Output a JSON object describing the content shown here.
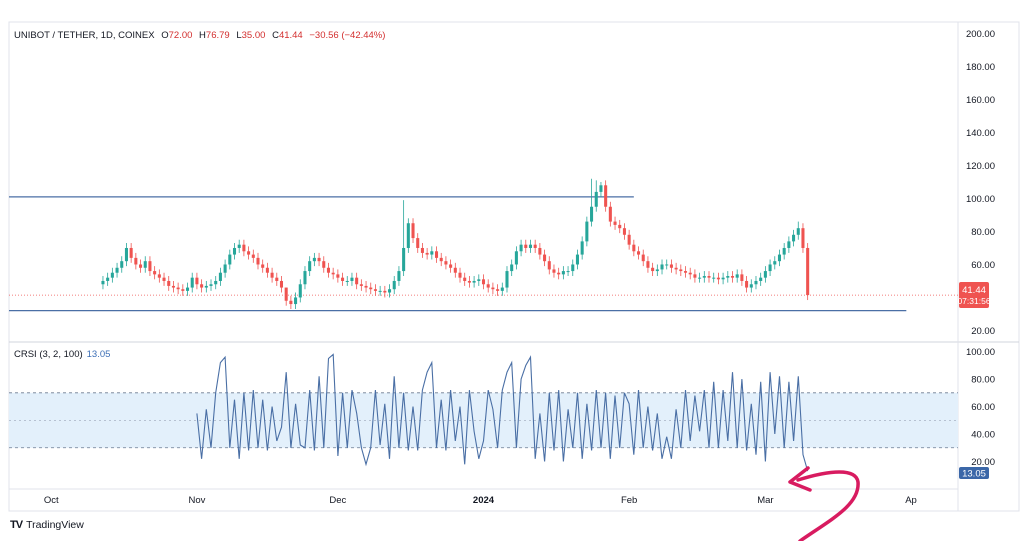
{
  "header": {
    "symbol": "UNIBOT / TETHER, 1D, COINEX",
    "o_label": "O",
    "o_value": "72.00",
    "h_label": "H",
    "h_value": "76.79",
    "l_label": "L",
    "l_value": "35.00",
    "c_label": "C",
    "c_value": "41.44",
    "change": "−30.56 (−42.44%)"
  },
  "indicator": {
    "name": "CRSI (3, 2, 100)",
    "value": "13.05"
  },
  "brand": {
    "logo": "TV",
    "name": "TradingView"
  },
  "price_badge": {
    "price": "41.44",
    "countdown": "07:31:56"
  },
  "crsi_badge": "13.05",
  "colors": {
    "up": "#26a69a",
    "down": "#ef5350",
    "line": "#4a6fa5",
    "band": "#e3f0fb",
    "accent": "#d81b60"
  },
  "chart_data": [
    {
      "type": "candlestick",
      "title": "",
      "y_axis_ticks": [
        "200.00",
        "180.00",
        "160.00",
        "140.00",
        "120.00",
        "100.00",
        "80.00",
        "60.00",
        "20.00"
      ],
      "ylim": [
        13,
        207
      ],
      "x_axis_ticks": [
        "Oct",
        "Nov",
        "Dec",
        "2024",
        "Feb",
        "Mar",
        "Ap"
      ],
      "x_range": [
        "2023-09-22",
        "2024-04-11"
      ],
      "hlines": [
        {
          "name": "resistance",
          "y": 101,
          "x_from": "2023-09-22",
          "x_to": "2024-02-02"
        },
        {
          "name": "support",
          "y": 32,
          "x_from": "2023-09-22",
          "x_to": "2024-03-31"
        }
      ],
      "last_price": 41.44,
      "closes": [
        50,
        52,
        55,
        58,
        62,
        70,
        64,
        60,
        58,
        62,
        56,
        54,
        52,
        50,
        47,
        46,
        45,
        44,
        46,
        52,
        48,
        46,
        47,
        48,
        50,
        55,
        60,
        66,
        70,
        72,
        68,
        66,
        64,
        60,
        58,
        55,
        52,
        50,
        46,
        38,
        36,
        40,
        48,
        56,
        62,
        64,
        62,
        58,
        55,
        54,
        52,
        50,
        50,
        52,
        48,
        47,
        46,
        45,
        44,
        44,
        43,
        45,
        50,
        56,
        70,
        85,
        76,
        70,
        67,
        66,
        68,
        64,
        62,
        60,
        58,
        55,
        52,
        50,
        49,
        50,
        51,
        48,
        46,
        45,
        44,
        46,
        56,
        60,
        68,
        72,
        70,
        72,
        70,
        66,
        62,
        57,
        55,
        54,
        56,
        56,
        60,
        66,
        74,
        86,
        95,
        104,
        108,
        95,
        86,
        84,
        82,
        78,
        72,
        68,
        66,
        62,
        58,
        56,
        57,
        60,
        60,
        58,
        57,
        56,
        55,
        54,
        52,
        52,
        53,
        52,
        52,
        51,
        52,
        53,
        52,
        54,
        50,
        46,
        48,
        50,
        52,
        56,
        60,
        62,
        66,
        70,
        74,
        78,
        82,
        70,
        41.44
      ],
      "crsi": [
        {
          "x": "2023-11-01",
          "y": 55
        },
        {
          "x": "2023-11-02",
          "y": 22
        },
        {
          "x": "2023-11-03",
          "y": 58
        },
        {
          "x": "2023-11-04",
          "y": 30
        },
        {
          "x": "2023-11-05",
          "y": 70
        },
        {
          "x": "2023-11-06",
          "y": 92
        },
        {
          "x": "2023-11-07",
          "y": 96
        },
        {
          "x": "2023-11-08",
          "y": 30
        },
        {
          "x": "2023-11-09",
          "y": 65
        },
        {
          "x": "2023-11-10",
          "y": 22
        },
        {
          "x": "2023-11-11",
          "y": 70
        },
        {
          "x": "2023-11-12",
          "y": 28
        },
        {
          "x": "2023-11-13",
          "y": 72
        },
        {
          "x": "2023-11-14",
          "y": 30
        },
        {
          "x": "2023-11-15",
          "y": 65
        },
        {
          "x": "2023-11-16",
          "y": 28
        },
        {
          "x": "2023-11-17",
          "y": 60
        },
        {
          "x": "2023-11-18",
          "y": 35
        },
        {
          "x": "2023-11-19",
          "y": 45
        },
        {
          "x": "2023-11-20",
          "y": 85
        },
        {
          "x": "2023-11-21",
          "y": 30
        },
        {
          "x": "2023-11-22",
          "y": 62
        },
        {
          "x": "2023-11-23",
          "y": 32
        },
        {
          "x": "2023-11-24",
          "y": 30
        },
        {
          "x": "2023-11-25",
          "y": 72
        },
        {
          "x": "2023-11-26",
          "y": 28
        },
        {
          "x": "2023-11-27",
          "y": 82
        },
        {
          "x": "2023-11-28",
          "y": 30
        },
        {
          "x": "2023-11-29",
          "y": 95
        },
        {
          "x": "2023-11-30",
          "y": 98
        },
        {
          "x": "2023-12-01",
          "y": 24
        },
        {
          "x": "2023-12-02",
          "y": 70
        },
        {
          "x": "2023-12-03",
          "y": 30
        },
        {
          "x": "2023-12-04",
          "y": 72
        },
        {
          "x": "2023-12-05",
          "y": 55
        },
        {
          "x": "2023-12-06",
          "y": 30
        },
        {
          "x": "2023-12-07",
          "y": 18
        },
        {
          "x": "2023-12-08",
          "y": 30
        },
        {
          "x": "2023-12-09",
          "y": 72
        },
        {
          "x": "2023-12-10",
          "y": 32
        },
        {
          "x": "2023-12-11",
          "y": 62
        },
        {
          "x": "2023-12-12",
          "y": 22
        },
        {
          "x": "2023-12-13",
          "y": 82
        },
        {
          "x": "2023-12-14",
          "y": 30
        },
        {
          "x": "2023-12-15",
          "y": 70
        },
        {
          "x": "2023-12-16",
          "y": 28
        },
        {
          "x": "2023-12-17",
          "y": 60
        },
        {
          "x": "2023-12-18",
          "y": 28
        },
        {
          "x": "2023-12-19",
          "y": 72
        },
        {
          "x": "2023-12-20",
          "y": 85
        },
        {
          "x": "2023-12-21",
          "y": 92
        },
        {
          "x": "2023-12-22",
          "y": 30
        },
        {
          "x": "2023-12-23",
          "y": 65
        },
        {
          "x": "2023-12-24",
          "y": 28
        },
        {
          "x": "2023-12-25",
          "y": 72
        },
        {
          "x": "2023-12-26",
          "y": 35
        },
        {
          "x": "2023-12-27",
          "y": 60
        },
        {
          "x": "2023-12-28",
          "y": 18
        },
        {
          "x": "2023-12-29",
          "y": 72
        },
        {
          "x": "2023-12-30",
          "y": 42
        },
        {
          "x": "2023-12-31",
          "y": 22
        },
        {
          "x": "2024-01-01",
          "y": 35
        },
        {
          "x": "2024-01-02",
          "y": 72
        },
        {
          "x": "2024-01-03",
          "y": 58
        },
        {
          "x": "2024-01-04",
          "y": 30
        },
        {
          "x": "2024-01-05",
          "y": 72
        },
        {
          "x": "2024-01-06",
          "y": 85
        },
        {
          "x": "2024-01-07",
          "y": 92
        },
        {
          "x": "2024-01-08",
          "y": 30
        },
        {
          "x": "2024-01-09",
          "y": 80
        },
        {
          "x": "2024-01-10",
          "y": 90
        },
        {
          "x": "2024-01-11",
          "y": 96
        },
        {
          "x": "2024-01-12",
          "y": 22
        },
        {
          "x": "2024-01-13",
          "y": 55
        },
        {
          "x": "2024-01-14",
          "y": 20
        },
        {
          "x": "2024-01-15",
          "y": 70
        },
        {
          "x": "2024-01-16",
          "y": 28
        },
        {
          "x": "2024-01-17",
          "y": 72
        },
        {
          "x": "2024-01-18",
          "y": 20
        },
        {
          "x": "2024-01-19",
          "y": 58
        },
        {
          "x": "2024-01-20",
          "y": 30
        },
        {
          "x": "2024-01-21",
          "y": 70
        },
        {
          "x": "2024-01-22",
          "y": 22
        },
        {
          "x": "2024-01-23",
          "y": 62
        },
        {
          "x": "2024-01-24",
          "y": 28
        },
        {
          "x": "2024-01-25",
          "y": 72
        },
        {
          "x": "2024-01-26",
          "y": 30
        },
        {
          "x": "2024-01-27",
          "y": 70
        },
        {
          "x": "2024-01-28",
          "y": 22
        },
        {
          "x": "2024-01-29",
          "y": 68
        },
        {
          "x": "2024-01-30",
          "y": 30
        },
        {
          "x": "2024-01-31",
          "y": 70
        },
        {
          "x": "2024-02-01",
          "y": 62
        },
        {
          "x": "2024-02-02",
          "y": 25
        },
        {
          "x": "2024-02-03",
          "y": 72
        },
        {
          "x": "2024-02-04",
          "y": 30
        },
        {
          "x": "2024-02-05",
          "y": 60
        },
        {
          "x": "2024-02-06",
          "y": 28
        },
        {
          "x": "2024-02-07",
          "y": 55
        },
        {
          "x": "2024-02-08",
          "y": 22
        },
        {
          "x": "2024-02-09",
          "y": 38
        },
        {
          "x": "2024-02-10",
          "y": 22
        },
        {
          "x": "2024-02-11",
          "y": 58
        },
        {
          "x": "2024-02-12",
          "y": 30
        },
        {
          "x": "2024-02-13",
          "y": 72
        },
        {
          "x": "2024-02-14",
          "y": 35
        },
        {
          "x": "2024-02-15",
          "y": 68
        },
        {
          "x": "2024-02-16",
          "y": 42
        },
        {
          "x": "2024-02-17",
          "y": 72
        },
        {
          "x": "2024-02-18",
          "y": 30
        },
        {
          "x": "2024-02-19",
          "y": 78
        },
        {
          "x": "2024-02-20",
          "y": 30
        },
        {
          "x": "2024-02-21",
          "y": 72
        },
        {
          "x": "2024-02-22",
          "y": 35
        },
        {
          "x": "2024-02-23",
          "y": 85
        },
        {
          "x": "2024-02-24",
          "y": 30
        },
        {
          "x": "2024-02-25",
          "y": 80
        },
        {
          "x": "2024-02-26",
          "y": 28
        },
        {
          "x": "2024-02-27",
          "y": 62
        },
        {
          "x": "2024-02-28",
          "y": 25
        },
        {
          "x": "2024-02-29",
          "y": 78
        },
        {
          "x": "2024-03-01",
          "y": 20
        },
        {
          "x": "2024-03-02",
          "y": 85
        },
        {
          "x": "2024-03-03",
          "y": 40
        },
        {
          "x": "2024-03-04",
          "y": 82
        },
        {
          "x": "2024-03-05",
          "y": 30
        },
        {
          "x": "2024-03-06",
          "y": 78
        },
        {
          "x": "2024-03-07",
          "y": 35
        },
        {
          "x": "2024-03-08",
          "y": 82
        },
        {
          "x": "2024-03-09",
          "y": 25
        },
        {
          "x": "2024-03-10",
          "y": 13.05
        }
      ],
      "crsi_ylim": [
        0,
        107
      ],
      "crsi_y_ticks": [
        "100.00",
        "80.00",
        "60.00",
        "40.00",
        "20.00"
      ],
      "crsi_band": [
        30,
        70
      ],
      "crsi_guides": [
        50
      ]
    }
  ]
}
